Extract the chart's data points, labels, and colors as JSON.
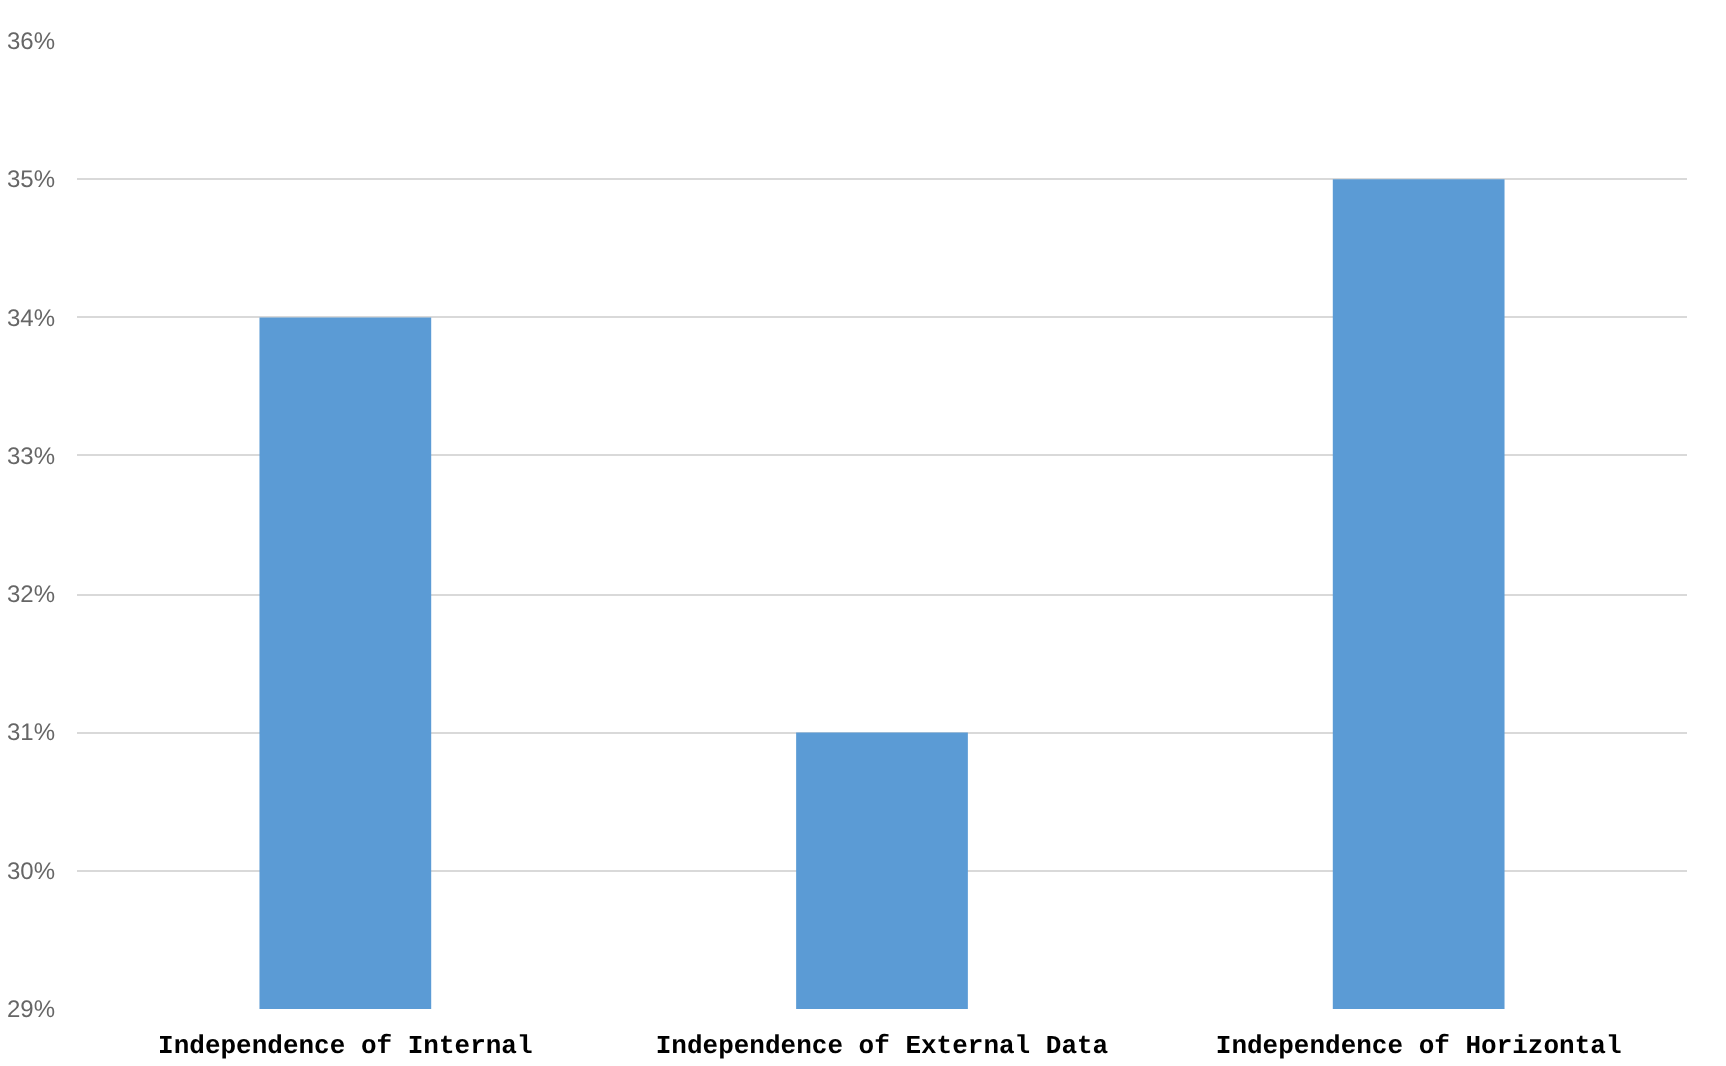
{
  "chart_data": {
    "type": "bar",
    "categories": [
      "Independence of Internal",
      "Independence of External Data",
      "Independence of Horizontal"
    ],
    "values": [
      34,
      31,
      35
    ],
    "color": "#5b9bd5",
    "ylim": [
      29,
      36
    ],
    "yticks": [
      {
        "value": 29,
        "label": "29%"
      },
      {
        "value": 30,
        "label": "30%"
      },
      {
        "value": 31,
        "label": "31%"
      },
      {
        "value": 32,
        "label": "32%"
      },
      {
        "value": 33,
        "label": "33%"
      },
      {
        "value": 34,
        "label": "34%"
      },
      {
        "value": 35,
        "label": "35%"
      },
      {
        "value": 36,
        "label": "36%"
      }
    ],
    "grid": "y"
  }
}
